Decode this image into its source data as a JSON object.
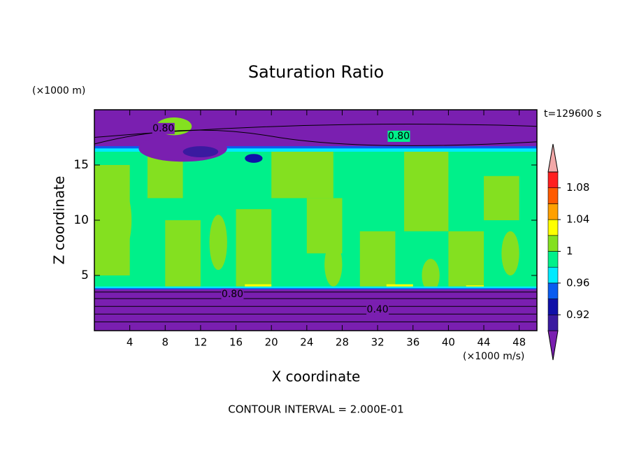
{
  "chart_data": {
    "type": "contour",
    "title": "Saturation Ratio",
    "xlabel": "X coordinate",
    "ylabel": "Z coordinate",
    "xunit": "(×1000 m/s)",
    "yunit": "(×1000 m)",
    "time_label": "t=129600 s",
    "footer": "CONTOUR INTERVAL = 2.000E-01",
    "contour_labels": [
      "0.80",
      "0.80",
      "0.80",
      "0.40"
    ],
    "xlim": [
      0,
      50
    ],
    "xticks": [
      4,
      8,
      12,
      16,
      20,
      24,
      28,
      32,
      36,
      40,
      44,
      48
    ],
    "ylim": [
      0,
      20
    ],
    "yticks": [
      5,
      10,
      15
    ],
    "colorbar": {
      "clim": [
        0.9,
        1.1
      ],
      "cticks": [
        0.92,
        0.96,
        1,
        1.04,
        1.08
      ],
      "colors": [
        "#7a1fb0",
        "#3a1aa0",
        "#1010a8",
        "#0a5cf0",
        "#00eaff",
        "#00f08a",
        "#84e020",
        "#ffff00",
        "#ffa000",
        "#ff5a00",
        "#ff2020",
        "#f2a8a8"
      ]
    }
  }
}
